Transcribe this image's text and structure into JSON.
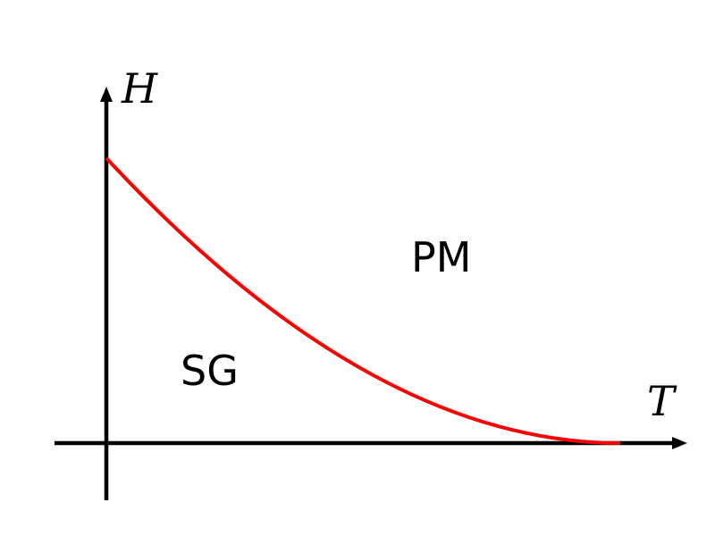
{
  "diagram": {
    "axes": {
      "x_label": "T",
      "y_label": "H",
      "color": "#000000"
    },
    "regions": {
      "upper": "PM",
      "lower": "SG"
    },
    "boundary": {
      "color": "#ff0000",
      "shape": "decreasing convex curve from H axis to T axis"
    }
  }
}
